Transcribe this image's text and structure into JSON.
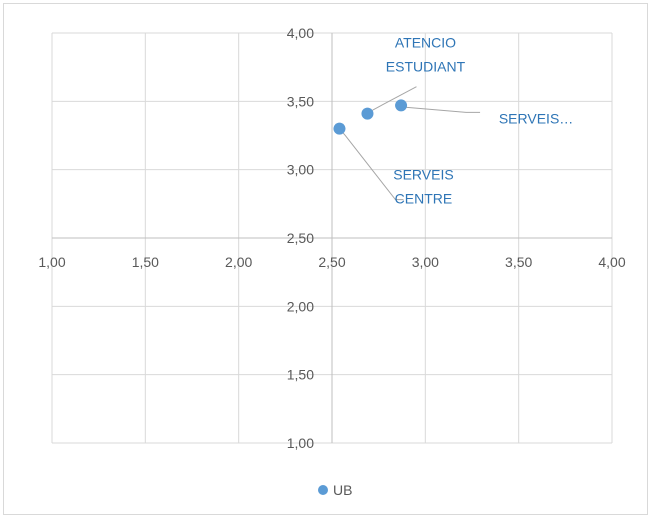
{
  "chart_data": {
    "type": "scatter",
    "title": "",
    "xlabel": "",
    "ylabel": "",
    "xlim": [
      1.0,
      4.0
    ],
    "ylim": [
      1.0,
      4.0
    ],
    "axis_crossing": {
      "x": 2.5,
      "y": 2.5
    },
    "x_ticks": [
      "1,00",
      "1,50",
      "2,00",
      "2,50",
      "3,00",
      "3,50",
      "4,00"
    ],
    "y_ticks": [
      "1,00",
      "1,50",
      "2,00",
      "2,50",
      "3,00",
      "3,50",
      "4,00"
    ],
    "grid": true,
    "legend": {
      "position": "bottom",
      "entries": [
        "UB"
      ]
    },
    "series": [
      {
        "name": "UB",
        "color": "#5b9bd5",
        "points": [
          {
            "x": 2.54,
            "y": 3.3,
            "label": [
              "SERVEIS",
              "CENTRE"
            ]
          },
          {
            "x": 2.69,
            "y": 3.41,
            "label": [
              "ATENCIO",
              "ESTUDIANT"
            ]
          },
          {
            "x": 2.87,
            "y": 3.47,
            "label": [
              "SERVEIS…"
            ]
          }
        ]
      }
    ]
  },
  "colors": {
    "marker": "#5b9bd5",
    "label": "#2e75b6",
    "gridline": "#d9d9d9",
    "axis": "#bfbfbf",
    "leader": "#a6a6a6",
    "tick_text": "#595959"
  }
}
